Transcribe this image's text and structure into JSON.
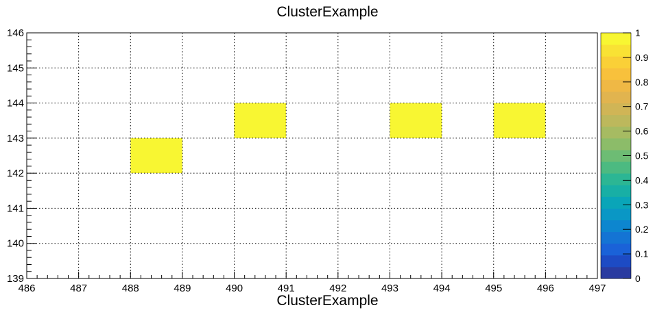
{
  "chart_data": {
    "type": "heatmap",
    "title": "ClusterExample",
    "xlabel": "ClusterExample",
    "ylabel": "",
    "xlim": [
      486,
      497
    ],
    "ylim": [
      139,
      146
    ],
    "x_ticks": [
      "486",
      "487",
      "488",
      "489",
      "490",
      "491",
      "492",
      "493",
      "494",
      "495",
      "496",
      "497"
    ],
    "y_ticks": [
      "139",
      "140",
      "141",
      "142",
      "143",
      "144",
      "145",
      "146"
    ],
    "grid": true,
    "cells": [
      {
        "x": [
          488,
          489
        ],
        "y": [
          142,
          143
        ],
        "value": 1
      },
      {
        "x": [
          490,
          491
        ],
        "y": [
          143,
          144
        ],
        "value": 1
      },
      {
        "x": [
          493,
          494
        ],
        "y": [
          143,
          144
        ],
        "value": 1
      },
      {
        "x": [
          495,
          496
        ],
        "y": [
          143,
          144
        ],
        "value": 1
      }
    ],
    "colorbar": {
      "range": [
        0,
        1
      ],
      "ticks": [
        "0",
        "0.1",
        "0.2",
        "0.3",
        "0.4",
        "0.5",
        "0.6",
        "0.7",
        "0.8",
        "0.9",
        "1"
      ],
      "colors": [
        "#2a3ba0",
        "#1d4bc4",
        "#1a62d8",
        "#1474d4",
        "#0d86cf",
        "#0a97c5",
        "#0aa5b8",
        "#18afa5",
        "#2cb694",
        "#4cba81",
        "#6dbc74",
        "#8cbc69",
        "#a6bb62",
        "#bdb85c",
        "#d0b556",
        "#e1b44f",
        "#efb845",
        "#f8c13c",
        "#fad037",
        "#f9e234",
        "#f8f632"
      ]
    }
  }
}
